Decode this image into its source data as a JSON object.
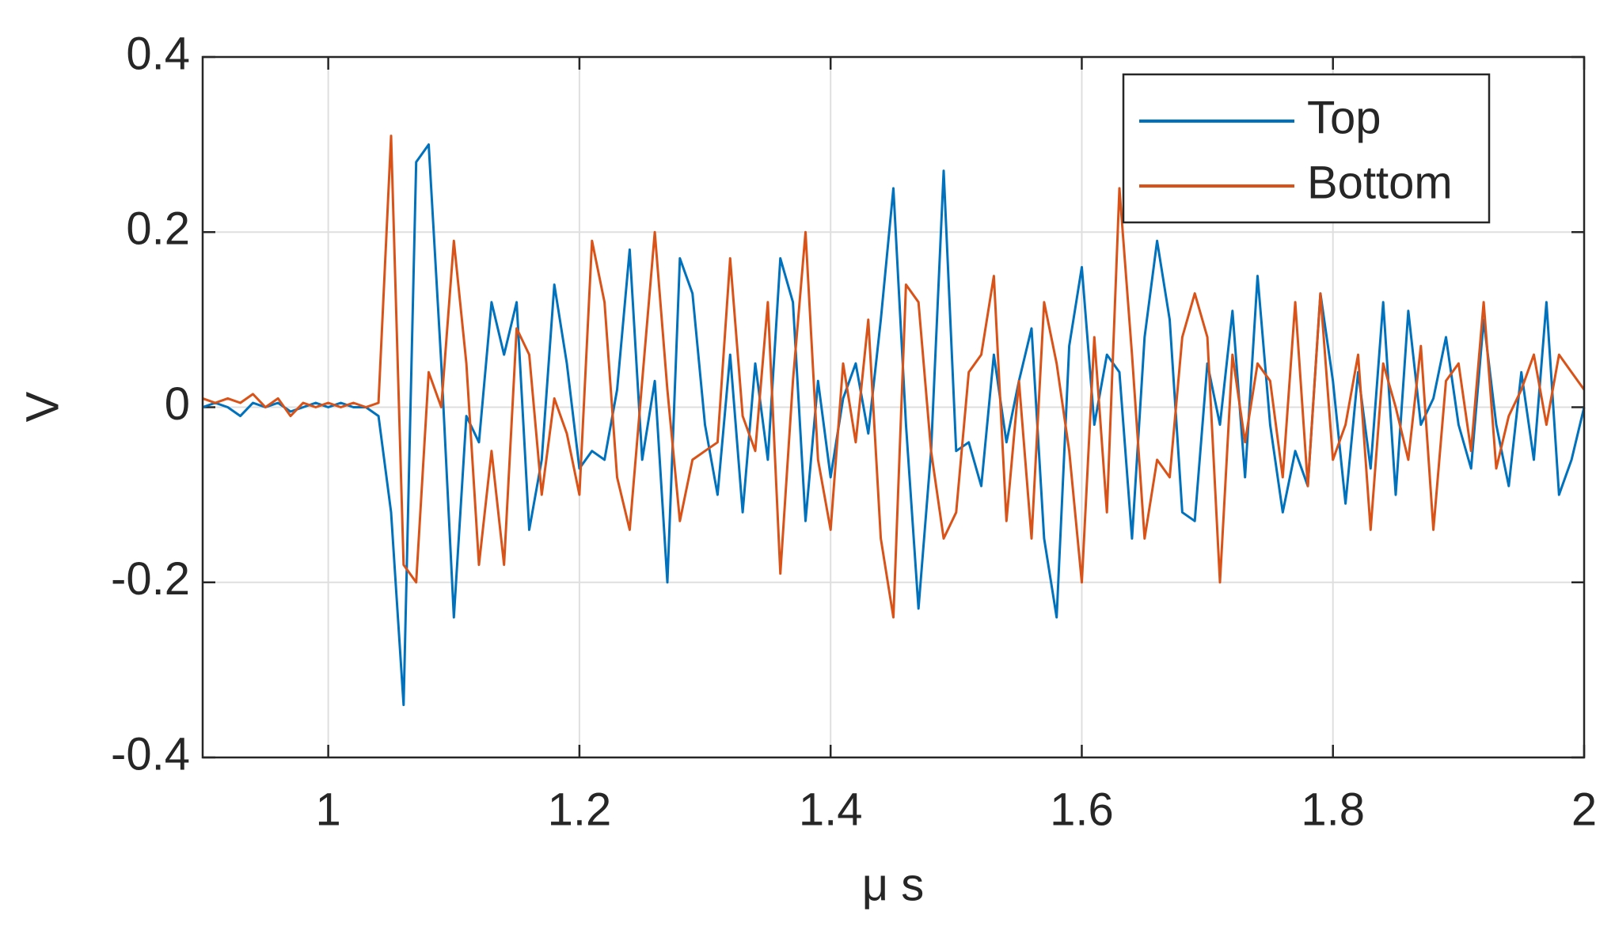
{
  "chart_data": {
    "type": "line",
    "xlabel": "μ s",
    "ylabel": "V",
    "x": [
      0.9,
      0.91,
      0.92,
      0.93,
      0.94,
      0.95,
      0.96,
      0.97,
      0.98,
      0.99,
      1.0,
      1.01,
      1.02,
      1.03,
      1.04,
      1.05,
      1.06,
      1.07,
      1.08,
      1.09,
      1.1,
      1.11,
      1.12,
      1.13,
      1.14,
      1.15,
      1.16,
      1.17,
      1.18,
      1.19,
      1.2,
      1.21,
      1.22,
      1.23,
      1.24,
      1.25,
      1.26,
      1.27,
      1.28,
      1.29,
      1.3,
      1.31,
      1.32,
      1.33,
      1.34,
      1.35,
      1.36,
      1.37,
      1.38,
      1.39,
      1.4,
      1.41,
      1.42,
      1.43,
      1.44,
      1.45,
      1.46,
      1.47,
      1.48,
      1.49,
      1.5,
      1.51,
      1.52,
      1.53,
      1.54,
      1.55,
      1.56,
      1.57,
      1.58,
      1.59,
      1.6,
      1.61,
      1.62,
      1.63,
      1.64,
      1.65,
      1.66,
      1.67,
      1.68,
      1.69,
      1.7,
      1.71,
      1.72,
      1.73,
      1.74,
      1.75,
      1.76,
      1.77,
      1.78,
      1.79,
      1.8,
      1.81,
      1.82,
      1.83,
      1.84,
      1.85,
      1.86,
      1.87,
      1.88,
      1.89,
      1.9,
      1.91,
      1.92,
      1.93,
      1.94,
      1.95,
      1.96,
      1.97,
      1.98,
      1.99,
      2.0
    ],
    "series": [
      {
        "name": "Top",
        "color": "#0072bd",
        "values": [
          0,
          0.005,
          0,
          -0.01,
          0.005,
          0,
          0.005,
          -0.005,
          0,
          0.005,
          0,
          0.005,
          0,
          0,
          -0.01,
          -0.12,
          -0.34,
          0.28,
          0.3,
          0.05,
          -0.24,
          -0.01,
          -0.04,
          0.12,
          0.06,
          0.12,
          -0.14,
          -0.06,
          0.14,
          0.05,
          -0.07,
          -0.05,
          -0.06,
          0.02,
          0.18,
          -0.06,
          0.03,
          -0.2,
          0.17,
          0.13,
          -0.02,
          -0.1,
          0.06,
          -0.12,
          0.05,
          -0.06,
          0.17,
          0.12,
          -0.13,
          0.03,
          -0.08,
          0.01,
          0.05,
          -0.03,
          0.1,
          0.25,
          -0.02,
          -0.23,
          -0.05,
          0.27,
          -0.05,
          -0.04,
          -0.09,
          0.06,
          -0.04,
          0.03,
          0.09,
          -0.15,
          -0.24,
          0.07,
          0.16,
          -0.02,
          0.06,
          0.04,
          -0.15,
          0.08,
          0.19,
          0.1,
          -0.12,
          -0.13,
          0.05,
          -0.02,
          0.11,
          -0.08,
          0.15,
          -0.02,
          -0.12,
          -0.05,
          -0.09,
          0.13,
          0.03,
          -0.11,
          0.04,
          -0.07,
          0.12,
          -0.1,
          0.11,
          -0.02,
          0.01,
          0.08,
          -0.02,
          -0.07,
          0.1,
          -0.02,
          -0.09,
          0.04,
          -0.06,
          0.12,
          -0.1,
          -0.06,
          0
        ]
      },
      {
        "name": "Bottom",
        "color": "#d95319",
        "values": [
          0.01,
          0.005,
          0.01,
          0.005,
          0.015,
          0,
          0.01,
          -0.01,
          0.005,
          0,
          0.005,
          0,
          0.005,
          0,
          0.005,
          0.31,
          -0.18,
          -0.2,
          0.04,
          0,
          0.19,
          0.05,
          -0.18,
          -0.05,
          -0.18,
          0.09,
          0.06,
          -0.1,
          0.01,
          -0.03,
          -0.1,
          0.19,
          0.12,
          -0.08,
          -0.14,
          0.03,
          0.2,
          0.02,
          -0.13,
          -0.06,
          -0.05,
          -0.04,
          0.17,
          -0.01,
          -0.05,
          0.12,
          -0.19,
          0.03,
          0.2,
          -0.06,
          -0.14,
          0.05,
          -0.04,
          0.1,
          -0.15,
          -0.24,
          0.14,
          0.12,
          -0.05,
          -0.15,
          -0.12,
          0.04,
          0.06,
          0.15,
          -0.13,
          0.03,
          -0.15,
          0.12,
          0.05,
          -0.05,
          -0.2,
          0.08,
          -0.12,
          0.25,
          0.06,
          -0.15,
          -0.06,
          -0.08,
          0.08,
          0.13,
          0.08,
          -0.2,
          0.06,
          -0.04,
          0.05,
          0.03,
          -0.08,
          0.12,
          -0.09,
          0.13,
          -0.06,
          -0.02,
          0.06,
          -0.14,
          0.05,
          0,
          -0.06,
          0.07,
          -0.14,
          0.03,
          0.05,
          -0.05,
          0.12,
          -0.07,
          -0.01,
          0.02,
          0.06,
          -0.02,
          0.06,
          0.04,
          0.02
        ]
      }
    ],
    "xlim": [
      0.9,
      2
    ],
    "xticks": [
      1,
      1.2,
      1.4,
      1.6,
      1.8,
      2
    ],
    "ylim": [
      -0.4,
      0.4
    ],
    "yticks": [
      -0.4,
      -0.2,
      0,
      0.2,
      0.4
    ],
    "grid": true,
    "legend": "upper right"
  }
}
